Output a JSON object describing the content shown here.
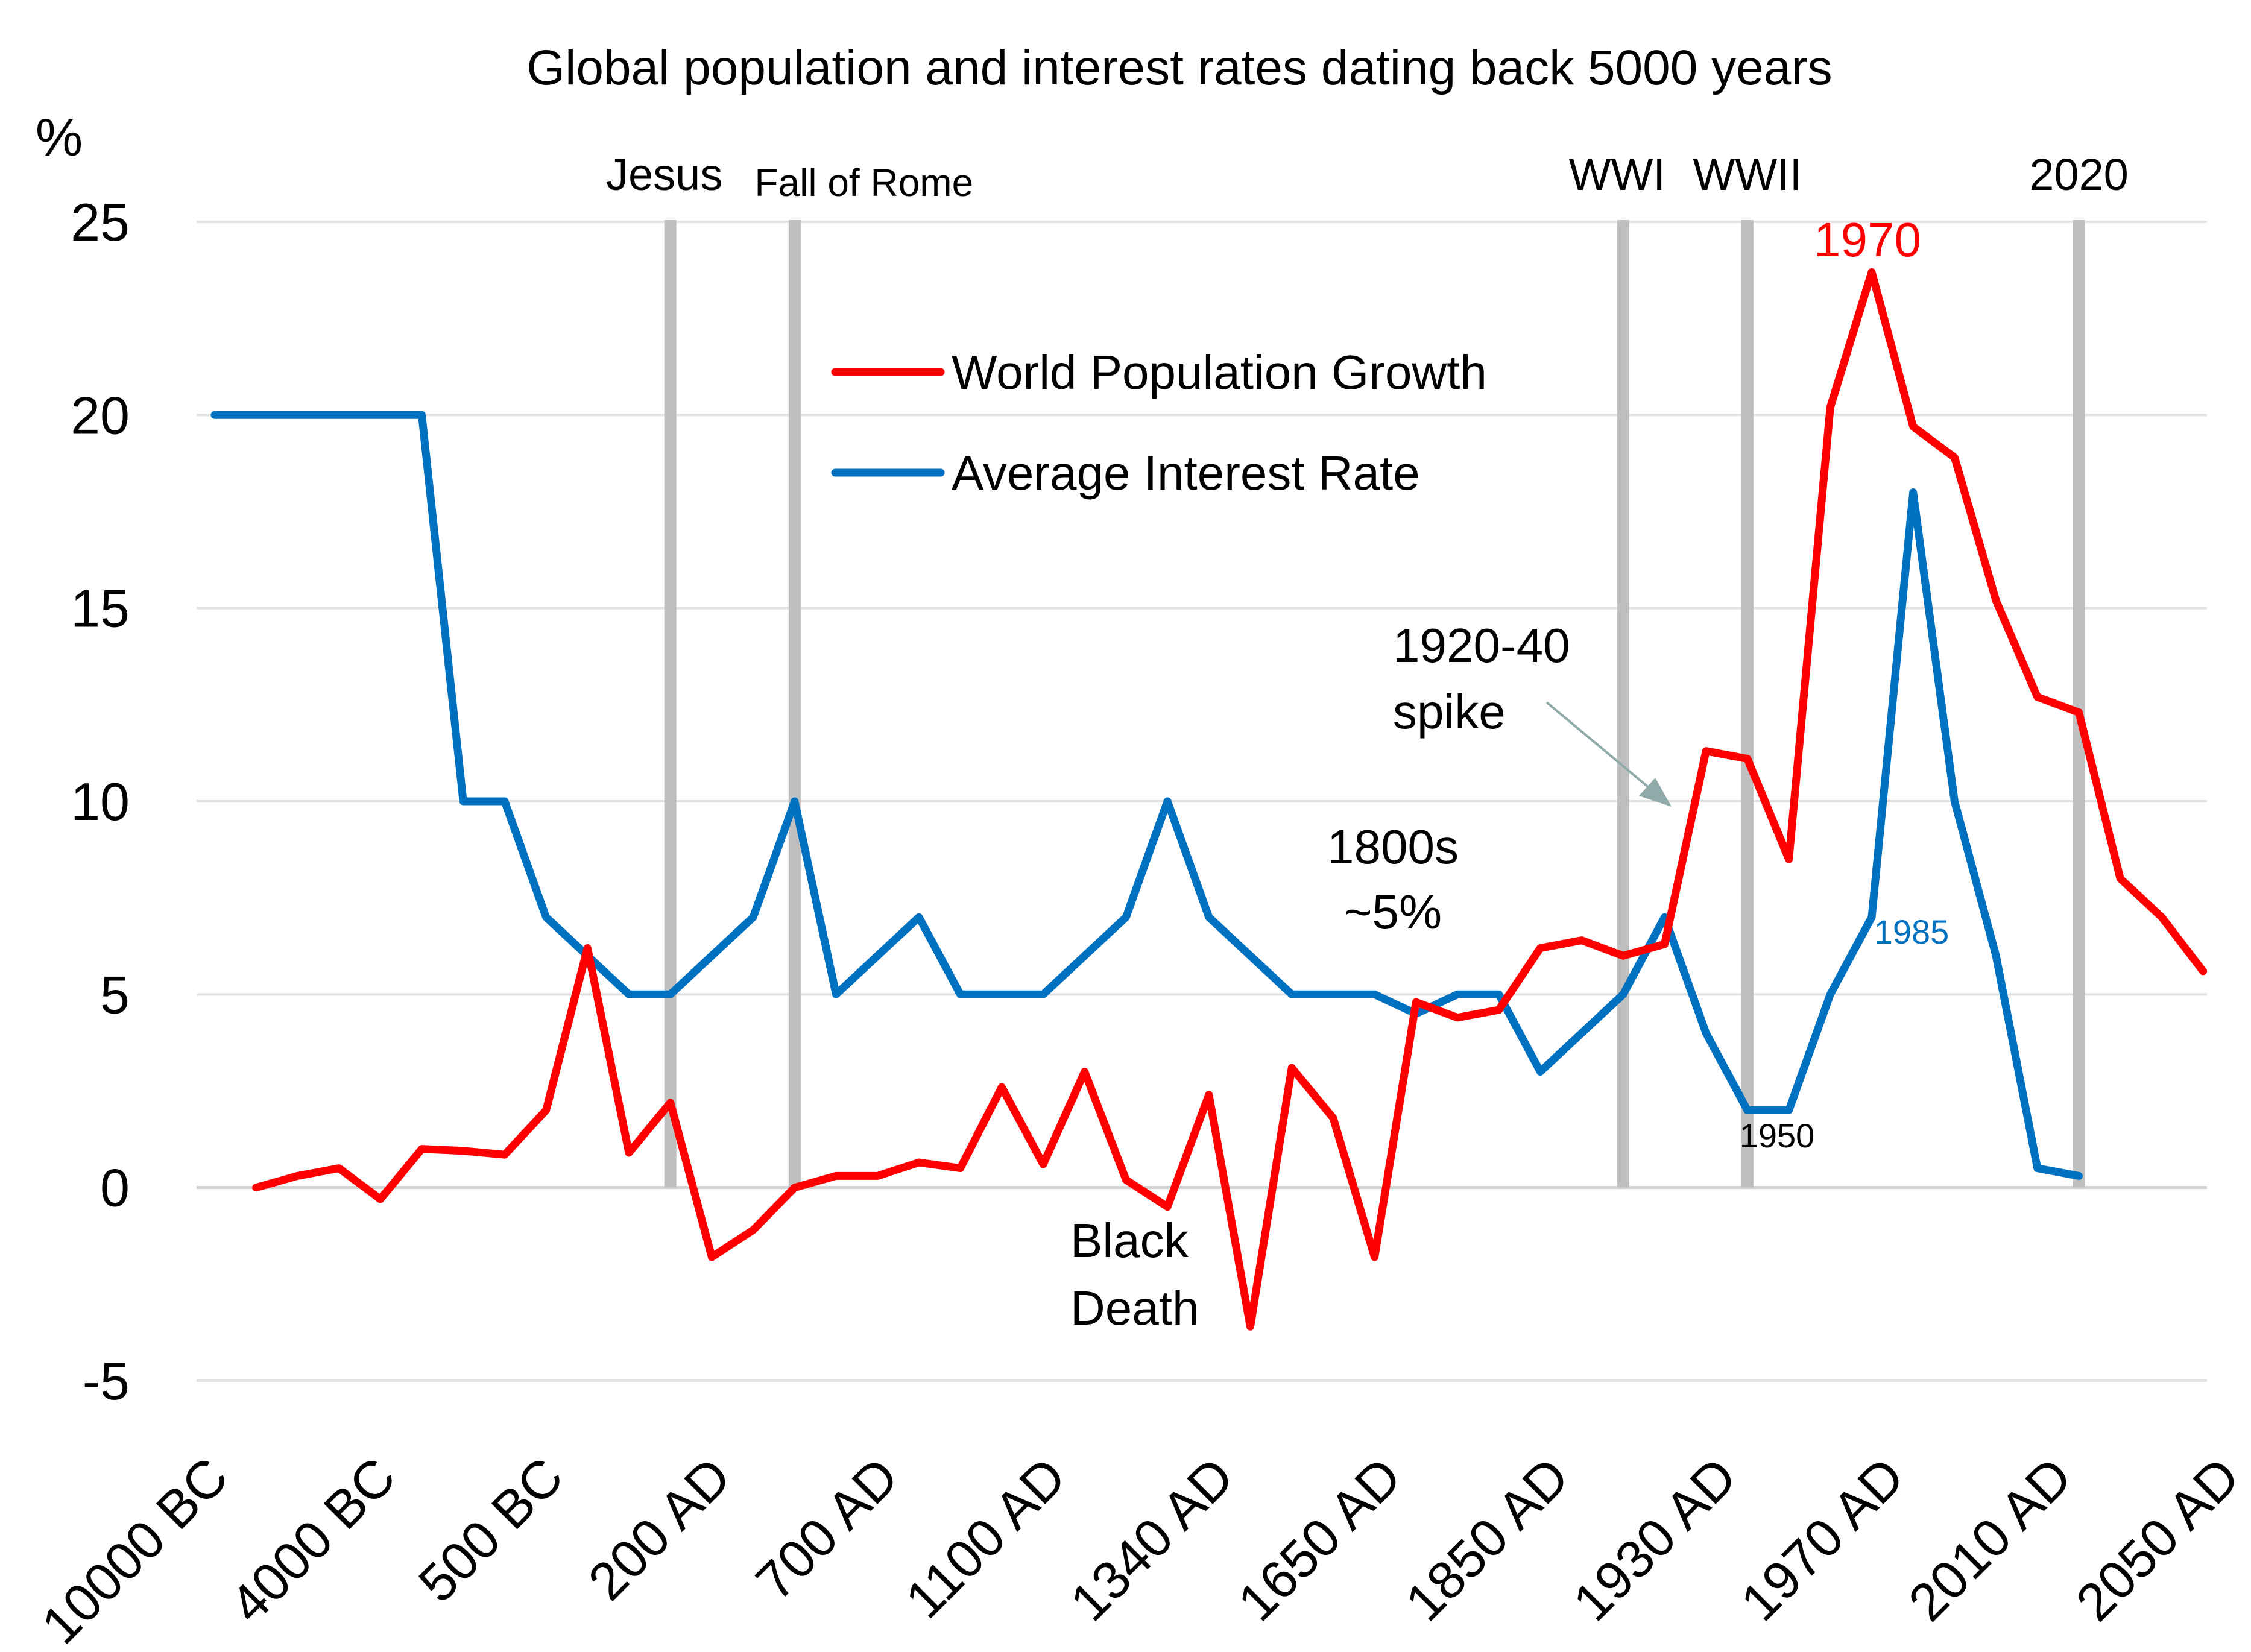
{
  "chart_data": {
    "type": "line",
    "title": "Global population and interest rates dating back 5000 years",
    "ylabel": "%",
    "ylim": [
      -5,
      25
    ],
    "yticks": [
      25,
      20,
      15,
      10,
      5,
      0,
      -5
    ],
    "ytick_labels": [
      "25",
      "20",
      "15",
      "10",
      "5",
      "0",
      "-5"
    ],
    "x_tick_labels": [
      "10000 BC",
      "4000 BC",
      "500 BC",
      "200 AD",
      "700 AD",
      "1100 AD",
      "1340 AD",
      "1650 AD",
      "1850 AD",
      "1930 AD",
      "1970 AD",
      "2010 AD",
      "2050 AD"
    ],
    "grid": true,
    "legend_position": "top-center",
    "series": [
      {
        "name": "World Population Growth",
        "color": "#ff0000",
        "points": [
          [
            1,
            0
          ],
          [
            2,
            0.3
          ],
          [
            3,
            0.5
          ],
          [
            4,
            -0.3
          ],
          [
            5,
            1
          ],
          [
            6,
            0.95
          ],
          [
            7,
            0.85
          ],
          [
            8,
            2
          ],
          [
            9,
            6.2
          ],
          [
            10,
            0.9
          ],
          [
            11,
            2.2
          ],
          [
            12,
            -1.8
          ],
          [
            13,
            -1.1
          ],
          [
            14,
            0
          ],
          [
            15,
            0.3
          ],
          [
            16,
            0.3
          ],
          [
            17,
            0.65
          ],
          [
            18,
            0.5
          ],
          [
            19,
            2.6
          ],
          [
            20,
            0.6
          ],
          [
            21,
            3
          ],
          [
            22,
            0.2
          ],
          [
            23,
            -0.5
          ],
          [
            24,
            2.4
          ],
          [
            25,
            -3.6
          ],
          [
            26,
            3.1
          ],
          [
            27,
            1.8
          ],
          [
            28,
            -1.8
          ],
          [
            29,
            4.8
          ],
          [
            30,
            4.4
          ],
          [
            31,
            4.6
          ],
          [
            32,
            6.2
          ],
          [
            33,
            6.4
          ],
          [
            34,
            6
          ],
          [
            35,
            6.3
          ],
          [
            36,
            11.3
          ],
          [
            37,
            11.1
          ],
          [
            38,
            8.5
          ],
          [
            39,
            20.2
          ],
          [
            40,
            23.7
          ],
          [
            41,
            19.7
          ],
          [
            42,
            18.9
          ],
          [
            43,
            15.2
          ],
          [
            44,
            12.7
          ],
          [
            45,
            12.3
          ],
          [
            46,
            8
          ],
          [
            47,
            7
          ],
          [
            48,
            5.6
          ]
        ]
      },
      {
        "name": "Average Interest Rate",
        "color": "#0070c0",
        "points": [
          [
            0,
            20
          ],
          [
            1,
            20
          ],
          [
            2,
            20
          ],
          [
            3,
            20
          ],
          [
            4,
            20
          ],
          [
            5,
            20
          ],
          [
            6,
            10
          ],
          [
            7,
            10
          ],
          [
            8,
            7
          ],
          [
            9,
            6
          ],
          [
            10,
            5
          ],
          [
            11,
            5
          ],
          [
            12,
            6
          ],
          [
            13,
            7
          ],
          [
            14,
            10
          ],
          [
            15,
            5
          ],
          [
            16,
            6
          ],
          [
            17,
            7
          ],
          [
            18,
            5
          ],
          [
            19,
            5
          ],
          [
            20,
            5
          ],
          [
            21,
            6
          ],
          [
            22,
            7
          ],
          [
            23,
            10
          ],
          [
            24,
            7
          ],
          [
            25,
            6
          ],
          [
            26,
            5
          ],
          [
            27,
            5
          ],
          [
            28,
            5
          ],
          [
            29,
            4.5
          ],
          [
            30,
            5
          ],
          [
            31,
            5
          ],
          [
            32,
            3
          ],
          [
            33,
            4
          ],
          [
            34,
            5
          ],
          [
            35,
            7
          ],
          [
            36,
            4
          ],
          [
            37,
            2
          ],
          [
            38,
            2
          ],
          [
            39,
            5
          ],
          [
            40,
            7
          ],
          [
            41,
            18
          ],
          [
            42,
            10
          ],
          [
            43,
            6
          ],
          [
            44,
            0.5
          ],
          [
            45,
            0.3
          ]
        ]
      }
    ],
    "events": [
      {
        "label": "Jesus",
        "x": 11
      },
      {
        "label": "Fall of Rome",
        "x": 14
      },
      {
        "label": "WWI",
        "x": 34
      },
      {
        "label": "WWII",
        "x": 37
      },
      {
        "label": "2020",
        "x": 45
      }
    ],
    "annotations": {
      "peak_1970": "1970",
      "label_1985": "1985",
      "label_1950": "1950",
      "spike_line1": "1920-40",
      "spike_line2": "spike",
      "c1800_line1": "1800s",
      "c1800_line2": "~5%",
      "black_line1": "Black",
      "black_line2": "Death"
    }
  }
}
